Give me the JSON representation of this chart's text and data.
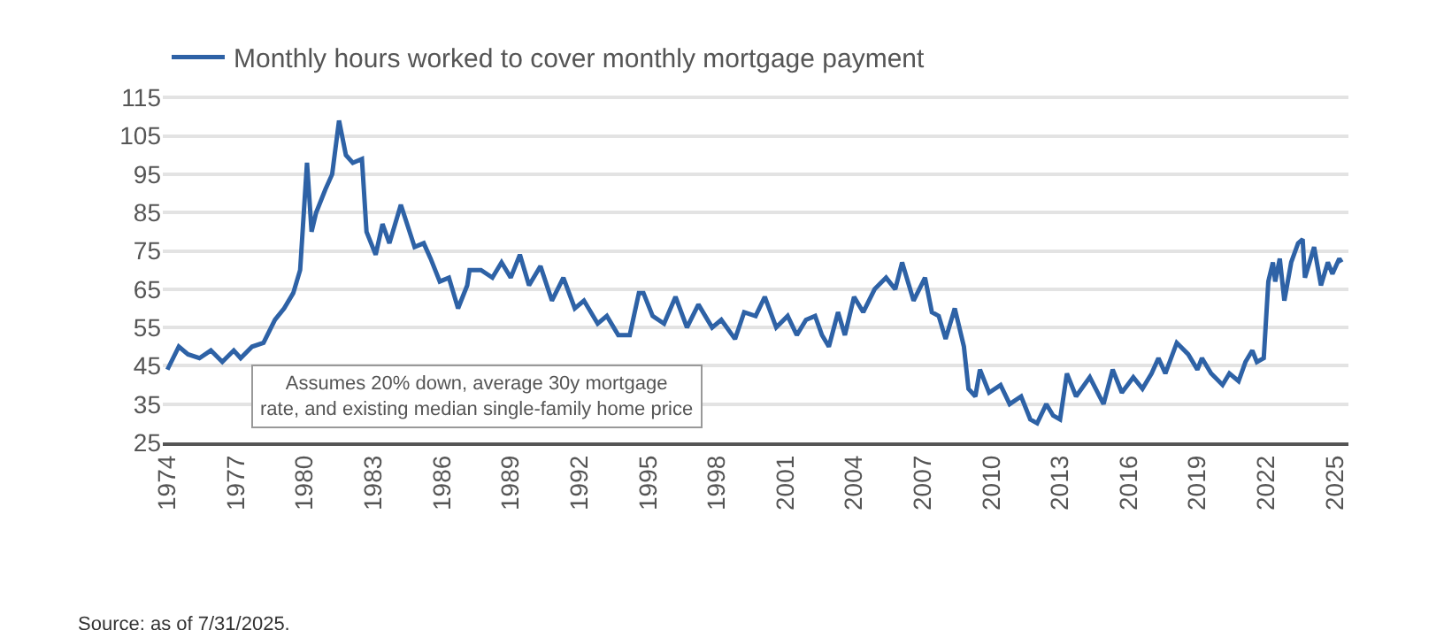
{
  "chart_data": {
    "type": "line",
    "annotations": [
      "Assumes 20% down, average 30y mortgage\nrate, and existing median single-family home price",
      "Source: as of 7/31/2025."
    ],
    "x": [
      1974.0,
      1974.5,
      1974.9,
      1975.4,
      1975.9,
      1976.4,
      1976.9,
      1977.2,
      1977.7,
      1978.2,
      1978.7,
      1979.1,
      1979.5,
      1979.8,
      1980.1,
      1980.3,
      1980.5,
      1980.9,
      1981.2,
      1981.5,
      1981.8,
      1982.1,
      1982.5,
      1982.7,
      1983.1,
      1983.4,
      1983.7,
      1984.2,
      1984.8,
      1985.2,
      1985.5,
      1985.9,
      1986.3,
      1986.7,
      1987.1,
      1987.2,
      1987.7,
      1988.2,
      1988.6,
      1989.0,
      1989.4,
      1989.8,
      1990.3,
      1990.8,
      1991.3,
      1991.8,
      1992.2,
      1992.8,
      1993.2,
      1993.7,
      1994.2,
      1994.6,
      1994.8,
      1995.2,
      1995.7,
      1996.2,
      1996.7,
      1997.2,
      1997.8,
      1998.2,
      1998.8,
      1999.2,
      1999.7,
      2000.1,
      2000.6,
      2001.1,
      2001.5,
      2001.9,
      2002.3,
      2002.6,
      2002.9,
      2003.3,
      2003.6,
      2004.0,
      2004.4,
      2004.9,
      2005.4,
      2005.8,
      2006.1,
      2006.6,
      2007.1,
      2007.4,
      2007.7,
      2008.0,
      2008.4,
      2008.8,
      2009.0,
      2009.3,
      2009.5,
      2009.9,
      2010.4,
      2010.8,
      2011.3,
      2011.7,
      2012.0,
      2012.4,
      2012.7,
      2013.0,
      2013.3,
      2013.7,
      2014.3,
      2014.9,
      2015.3,
      2015.7,
      2016.2,
      2016.6,
      2017.0,
      2017.3,
      2017.6,
      2018.1,
      2018.6,
      2019.0,
      2019.2,
      2019.6,
      2020.1,
      2020.4,
      2020.8,
      2021.1,
      2021.4,
      2021.6,
      2021.9,
      2022.1,
      2022.3,
      2022.4,
      2022.6,
      2022.8,
      2023.1,
      2023.4,
      2023.6,
      2023.7,
      2024.1,
      2024.4,
      2024.7,
      2024.9,
      2025.2,
      2025.3
    ],
    "series": [
      {
        "name": "Monthly hours worked to cover monthly mortgage payment",
        "color": "#2e62a6",
        "values": [
          44,
          50,
          48,
          47,
          49,
          46,
          49,
          47,
          50,
          51,
          57,
          60,
          64,
          70,
          98,
          80,
          85,
          91,
          95,
          109,
          100,
          98,
          99,
          80,
          74,
          82,
          77,
          87,
          76,
          77,
          73,
          67,
          68,
          60,
          66,
          70,
          70,
          68,
          72,
          68,
          74,
          66,
          71,
          62,
          68,
          60,
          62,
          56,
          58,
          53,
          53,
          64,
          64,
          58,
          56,
          63,
          55,
          61,
          55,
          57,
          52,
          59,
          58,
          63,
          55,
          58,
          53,
          57,
          58,
          53,
          50,
          59,
          53,
          63,
          59,
          65,
          68,
          65,
          72,
          62,
          68,
          59,
          58,
          52,
          60,
          50,
          39,
          37,
          44,
          38,
          40,
          35,
          37,
          31,
          30,
          35,
          32,
          31,
          43,
          37,
          42,
          35,
          44,
          38,
          42,
          39,
          43,
          47,
          43,
          51,
          48,
          44,
          47,
          43,
          40,
          43,
          41,
          46,
          49,
          46,
          47,
          67,
          72,
          67,
          73,
          62,
          72,
          77,
          78,
          68,
          76,
          66,
          72,
          69,
          73,
          72
        ]
      }
    ],
    "xlim": [
      1973.8,
      2025.6
    ],
    "xticks": [
      1974,
      1977,
      1980,
      1983,
      1986,
      1989,
      1992,
      1995,
      1998,
      2001,
      2004,
      2007,
      2010,
      2013,
      2016,
      2019,
      2022,
      2025
    ],
    "ylim": [
      25,
      116
    ],
    "yticks": [
      25,
      35,
      45,
      55,
      65,
      75,
      85,
      95,
      105,
      115
    ],
    "grid": "y",
    "legend": "top left",
    "line_style": "solid",
    "marker": "none"
  }
}
